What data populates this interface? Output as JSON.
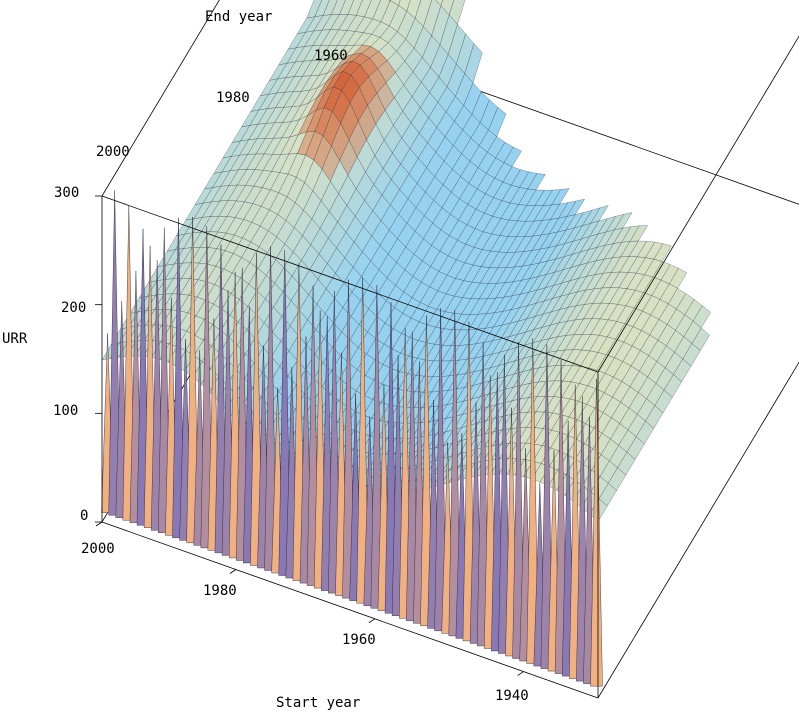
{
  "chart_data": {
    "type": "surface3d",
    "title": "",
    "xlabel": "Start year",
    "ylabel": "End year",
    "zlabel": "URR",
    "x_ticks": [
      "2000",
      "1980",
      "1960",
      "1940"
    ],
    "y_ticks": [
      "1960",
      "1980",
      "2000"
    ],
    "z_ticks": [
      "300",
      "200",
      "100",
      "0"
    ],
    "x_range": [
      1930,
      2005
    ],
    "y_range": [
      1955,
      2005
    ],
    "z_range": [
      0,
      300
    ],
    "colors": {
      "plateau": "#8fd0ee",
      "cliff_violet": "#8878b4",
      "cliff_peach": "#f0b080",
      "valley_cyan": "#96d2f0",
      "valley_yellow": "#f0e6b4",
      "peak_orange": "#d2643c",
      "peak_crimson": "#a03250",
      "mesh": "#1e1e32",
      "box": "#000000"
    }
  }
}
